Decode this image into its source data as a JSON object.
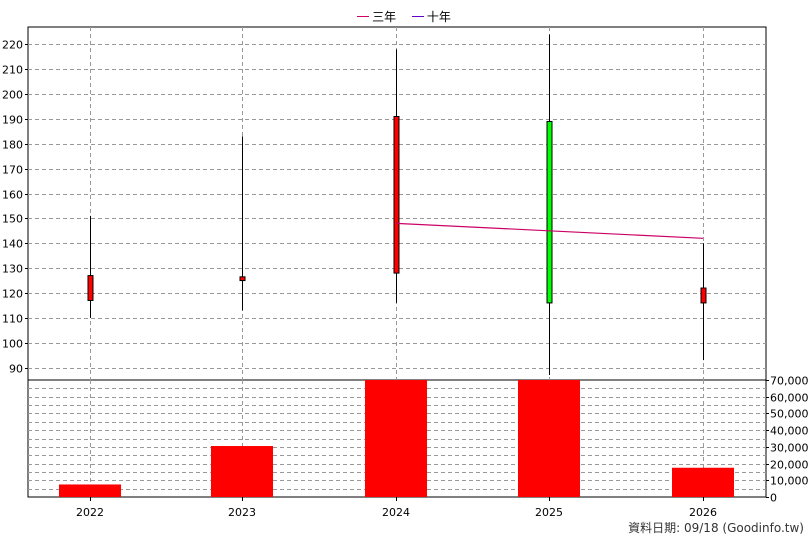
{
  "legend": [
    {
      "label": "三年",
      "color": "#cc0066"
    },
    {
      "label": "十年",
      "color": "#6600cc"
    }
  ],
  "credit": "資料日期: 09/18  (Goodinfo.tw)",
  "chart_data": {
    "type": "candlestick+bar",
    "categories": [
      "2022",
      "2023",
      "2024",
      "2025",
      "2026"
    ],
    "price": {
      "ylim": [
        85,
        227
      ],
      "ticks": [
        90,
        100,
        110,
        120,
        130,
        140,
        150,
        160,
        170,
        180,
        190,
        200,
        210,
        220
      ],
      "candles": [
        {
          "open": 117,
          "close": 127,
          "high": 151,
          "low": 110,
          "color": "#ff0000"
        },
        {
          "open": 125,
          "close": 126.5,
          "high": 183,
          "low": 113,
          "color": "#ff0000"
        },
        {
          "open": 128,
          "close": 191,
          "high": 218,
          "low": 116,
          "color": "#ff0000"
        },
        {
          "open": 189,
          "close": 116,
          "high": 224,
          "low": 87,
          "color": "#00ff00"
        },
        {
          "open": 116,
          "close": 122,
          "high": 140,
          "low": 93,
          "color": "#ff0000"
        }
      ],
      "avg_line": {
        "name": "三年",
        "color": "#cc0066",
        "points": [
          {
            "x": "2024",
            "y": 148
          },
          {
            "x": "2026",
            "y": 142
          }
        ]
      }
    },
    "volume": {
      "ylim": [
        0,
        70000
      ],
      "ticks": [
        0,
        10000,
        20000,
        30000,
        40000,
        50000,
        60000,
        70000
      ],
      "tick_labels": [
        "0",
        "10,000",
        "20,000",
        "30,000",
        "40,000",
        "50,000",
        "60,000",
        "70,000"
      ],
      "values": [
        7500,
        30500,
        70500,
        71000,
        17500
      ],
      "color": "#ff0000"
    },
    "grid": true
  }
}
